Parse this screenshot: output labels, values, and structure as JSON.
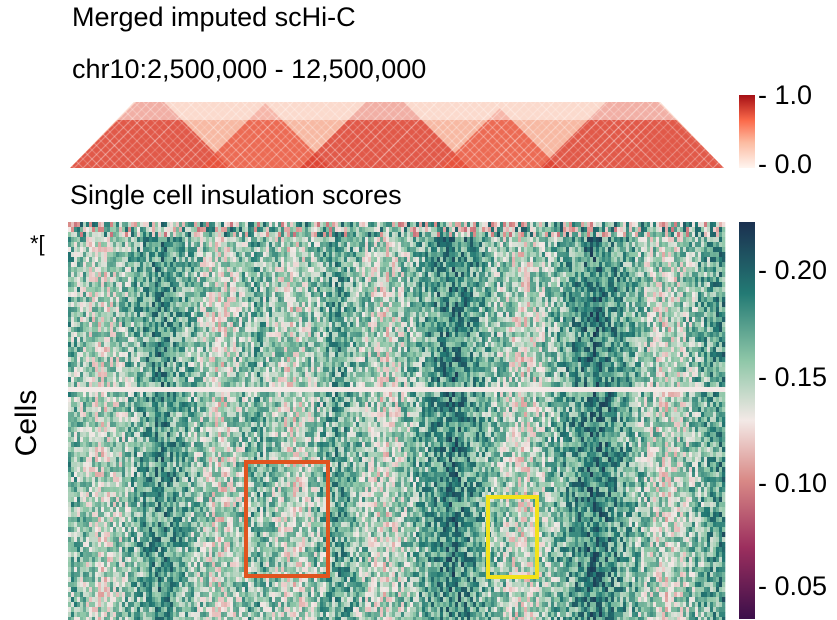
{
  "titles": {
    "main": "Merged imputed scHi-C",
    "region": "chr10:2,500,000 - 12,500,000",
    "insulation": "Single cell insulation scores"
  },
  "ylabel": "Cells",
  "cluster_marker": "*[",
  "colors": {
    "reds_low": "#fff5f0",
    "reds_high": "#a50f15",
    "curl_low": "#3b0f4a",
    "curl_mid": "#f3e9e6",
    "curl_high": "#1b3050",
    "box_orange": "#e0541f",
    "box_yellow": "#f2e21a"
  },
  "chart_data": [
    {
      "type": "heatmap",
      "title": "Merged imputed scHi-C",
      "subtitle": "chr10:2,500,000 - 12,500,000",
      "colorbar": {
        "colormap": "reds",
        "range": [
          0.0,
          1.0
        ],
        "ticks": [
          "0.0",
          "1.0"
        ]
      }
    },
    {
      "type": "heatmap",
      "title": "Single cell insulation scores",
      "ylabel": "Cells",
      "colorbar": {
        "colormap": "curl",
        "range": [
          0.035,
          0.225
        ],
        "ticks": [
          "0.05",
          "0.10",
          "0.15",
          "0.20"
        ]
      },
      "boundary_columns_fraction": [
        0.05,
        0.23,
        0.34,
        0.48,
        0.69,
        0.91
      ],
      "highlight_boxes": [
        {
          "color": "orange",
          "x_fraction": [
            0.27,
            0.4
          ],
          "y_fraction": [
            0.62,
            0.94
          ]
        },
        {
          "color": "yellow",
          "x_fraction": [
            0.64,
            0.72
          ],
          "y_fraction": [
            0.74,
            0.94
          ]
        }
      ]
    }
  ]
}
